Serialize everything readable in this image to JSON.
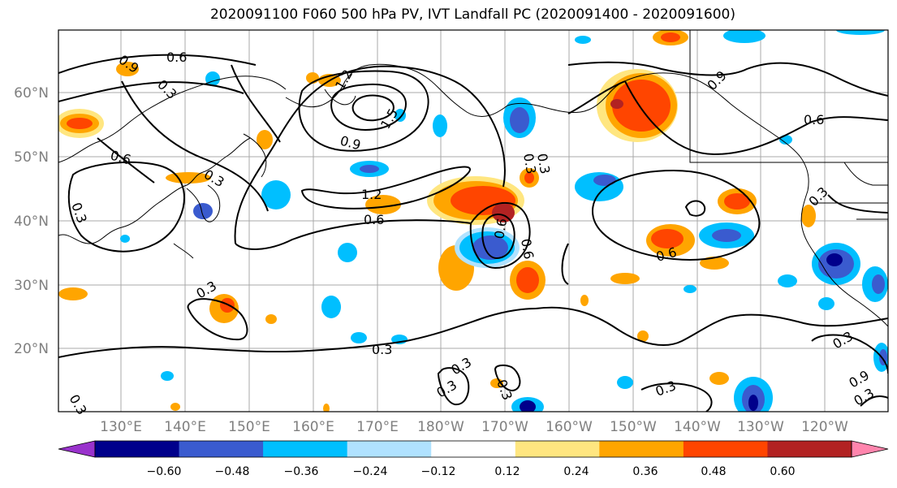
{
  "title": "2020091100 F060 500 hPa PV, IVT Landfall PC (2020091400 - 2020091600)",
  "map": {
    "lat_labels": [
      "60°N",
      "50°N",
      "40°N",
      "30°N",
      "20°N"
    ],
    "lon_labels": [
      "130°E",
      "140°E",
      "150°E",
      "160°E",
      "170°E",
      "180°W",
      "170°W",
      "160°W",
      "150°W",
      "140°W",
      "130°W",
      "120°W"
    ],
    "contour_labels": [
      "0.9",
      "0.6",
      "0.3",
      "1.2",
      "1.5",
      "0.9",
      "0.6",
      "0.3",
      "1.2",
      "0.6",
      "0.3",
      "0.6",
      "0.6",
      "0.6",
      "0.9",
      "0.3",
      "0.6",
      "0.3",
      "0.3",
      "0.3",
      "0.3",
      "0.3",
      "0.3",
      "0.3",
      "0.9",
      "0.3",
      "0.3",
      "0.3",
      "0.3"
    ]
  },
  "colorbar": {
    "colors": [
      "#9932cc",
      "#00008b",
      "#3a5bcf",
      "#00bfff",
      "#b0e2ff",
      "#ffffff",
      "#ffe680",
      "#ffa500",
      "#ff4500",
      "#b22222",
      "#ff85ad"
    ],
    "tick_labels": [
      "−0.60",
      "−0.48",
      "−0.36",
      "−0.24",
      "−0.12",
      "0.12",
      "0.24",
      "0.36",
      "0.48",
      "0.60"
    ]
  }
}
